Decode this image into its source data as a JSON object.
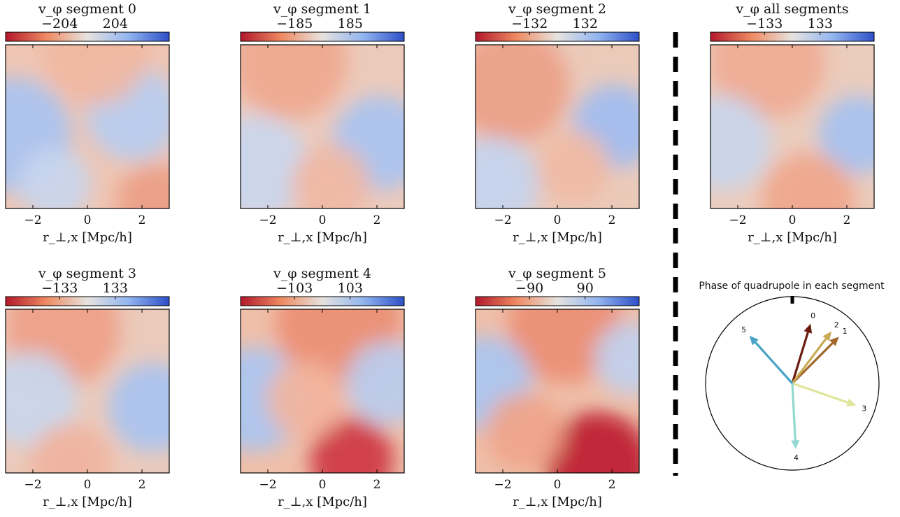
{
  "chart_data": [
    {
      "type": "heatmap",
      "title": "v_φ segment 0",
      "colorbar_ticks": [
        "−204",
        "204"
      ],
      "x_ticks": [
        "−2",
        "0",
        "2"
      ],
      "xlabel": "r_⊥,x [Mpc/h]",
      "xlim": [
        -3,
        3
      ]
    },
    {
      "type": "heatmap",
      "title": "v_φ segment 1",
      "colorbar_ticks": [
        "−185",
        "185"
      ],
      "x_ticks": [
        "−2",
        "0",
        "2"
      ],
      "xlabel": "r_⊥,x [Mpc/h]",
      "xlim": [
        -3,
        3
      ]
    },
    {
      "type": "heatmap",
      "title": "v_φ segment 2",
      "colorbar_ticks": [
        "−132",
        "132"
      ],
      "x_ticks": [
        "−2",
        "0",
        "2"
      ],
      "xlabel": "r_⊥,x [Mpc/h]",
      "xlim": [
        -3,
        3
      ]
    },
    {
      "type": "heatmap",
      "title": "v_φ all segments",
      "colorbar_ticks": [
        "−133",
        "133"
      ],
      "x_ticks": [
        "−2",
        "0",
        "2"
      ],
      "xlabel": "r_⊥,x [Mpc/h]",
      "xlim": [
        -3,
        3
      ]
    },
    {
      "type": "heatmap",
      "title": "v_φ segment 3",
      "colorbar_ticks": [
        "−133",
        "133"
      ],
      "x_ticks": [
        "−2",
        "0",
        "2"
      ],
      "xlabel": "r_⊥,x [Mpc/h]",
      "xlim": [
        -3,
        3
      ]
    },
    {
      "type": "heatmap",
      "title": "v_φ segment 4",
      "colorbar_ticks": [
        "−103",
        "103"
      ],
      "x_ticks": [
        "−2",
        "0",
        "2"
      ],
      "xlabel": "r_⊥,x [Mpc/h]",
      "xlim": [
        -3,
        3
      ]
    },
    {
      "type": "heatmap",
      "title": "v_φ segment 5",
      "colorbar_ticks": [
        "−90",
        "90"
      ],
      "x_ticks": [
        "−2",
        "0",
        "2"
      ],
      "xlabel": "r_⊥,x [Mpc/h]",
      "xlim": [
        -3,
        3
      ]
    },
    {
      "type": "polar_vectors",
      "title": "Phase of quadrupole in each segment",
      "vectors": [
        {
          "label": "0",
          "angle_deg": 73,
          "length": 0.72,
          "color": "#6b1a0e"
        },
        {
          "label": "1",
          "angle_deg": 45,
          "length": 0.76,
          "color": "#a2672a"
        },
        {
          "label": "2",
          "angle_deg": 53,
          "length": 0.75,
          "color": "#c9aa55"
        },
        {
          "label": "3",
          "angle_deg": -19,
          "length": 0.78,
          "color": "#dfe59b"
        },
        {
          "label": "4",
          "angle_deg": -87,
          "length": 0.76,
          "color": "#92d9d0"
        },
        {
          "label": "5",
          "angle_deg": 132,
          "length": 0.74,
          "color": "#4aa3c6"
        }
      ]
    }
  ]
}
